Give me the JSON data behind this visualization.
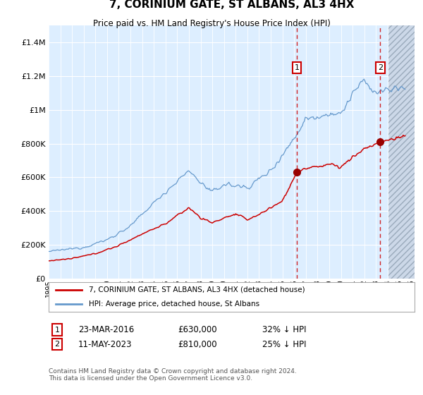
{
  "title": "7, CORINIUM GATE, ST ALBANS, AL3 4HX",
  "subtitle": "Price paid vs. HM Land Registry's House Price Index (HPI)",
  "ytick_values": [
    0,
    200000,
    400000,
    600000,
    800000,
    1000000,
    1200000,
    1400000
  ],
  "ylim": [
    0,
    1500000
  ],
  "xlim_start": 1995,
  "xlim_end": 2026.3,
  "event1": {
    "date_label": "23-MAR-2016",
    "price_label": "£630,000",
    "pct_label": "32% ↓ HPI",
    "x_year": 2016.22,
    "y_val": 630000
  },
  "event2": {
    "date_label": "11-MAY-2023",
    "price_label": "£810,000",
    "pct_label": "25% ↓ HPI",
    "x_year": 2023.37,
    "y_val": 810000
  },
  "legend_line1": "7, CORINIUM GATE, ST ALBANS, AL3 4HX (detached house)",
  "legend_line2": "HPI: Average price, detached house, St Albans",
  "footnote1": "Contains HM Land Registry data © Crown copyright and database right 2024.",
  "footnote2": "This data is licensed under the Open Government Licence v3.0.",
  "red_color": "#cc0000",
  "blue_color": "#6699cc",
  "bg_color": "#ddeeff",
  "hatch_bg_color": "#ccdaeb",
  "marker_color": "#990000",
  "box_edge_color": "#cc0000",
  "dashed_color": "#cc0000",
  "grid_color": "#ffffff",
  "hatch_end": 2026.3,
  "hatch_start": 2024.08
}
